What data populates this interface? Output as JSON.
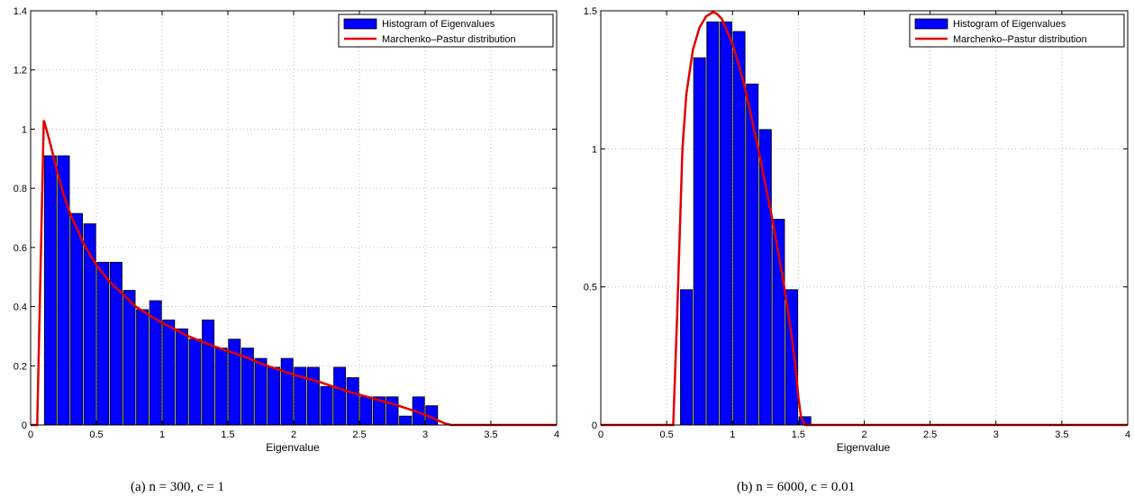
{
  "chart_data": [
    {
      "type": "bar",
      "xlabel": "Eigenvalue",
      "ylabel": "",
      "xlim": [
        0,
        4
      ],
      "ylim": [
        0,
        1.4
      ],
      "xticks": [
        "0",
        "0.5",
        "1",
        "1.5",
        "2",
        "2.5",
        "3",
        "3.5",
        "4"
      ],
      "yticks": [
        "0",
        "0.2",
        "0.4",
        "0.6",
        "0.8",
        "1",
        "1.2",
        "1.4"
      ],
      "grid": true,
      "legend_position": "top-right",
      "bar_width": 0.09,
      "series": [
        {
          "name": "Histogram of Eigenvalues",
          "type": "bar",
          "x": [
            0.15,
            0.25,
            0.35,
            0.45,
            0.55,
            0.65,
            0.75,
            0.85,
            0.95,
            1.05,
            1.15,
            1.25,
            1.35,
            1.45,
            1.55,
            1.65,
            1.75,
            1.85,
            1.95,
            2.05,
            2.15,
            2.25,
            2.35,
            2.45,
            2.55,
            2.65,
            2.75,
            2.85,
            2.95,
            3.05
          ],
          "values": [
            0.91,
            0.91,
            0.715,
            0.68,
            0.55,
            0.55,
            0.455,
            0.39,
            0.42,
            0.355,
            0.325,
            0.29,
            0.355,
            0.26,
            0.29,
            0.26,
            0.225,
            0.195,
            0.225,
            0.195,
            0.195,
            0.13,
            0.195,
            0.16,
            0.095,
            0.095,
            0.095,
            0.03,
            0.095,
            0.065
          ]
        },
        {
          "name": "Marchenko–Pastur distribution",
          "type": "line",
          "color": "#e00000",
          "x": [
            0,
            0.05,
            0.1,
            0.12,
            0.15,
            0.2,
            0.25,
            0.3,
            0.4,
            0.5,
            0.6,
            0.8,
            1.0,
            1.2,
            1.4,
            1.6,
            1.8,
            2.0,
            2.2,
            2.4,
            2.6,
            2.8,
            3.0,
            3.1,
            3.15,
            3.2,
            4.0
          ],
          "values": [
            0,
            0,
            1.03,
            1.0,
            0.95,
            0.86,
            0.78,
            0.715,
            0.615,
            0.54,
            0.485,
            0.4,
            0.345,
            0.3,
            0.265,
            0.235,
            0.2,
            0.17,
            0.145,
            0.115,
            0.09,
            0.065,
            0.035,
            0.015,
            0.005,
            0,
            0
          ]
        }
      ]
    },
    {
      "type": "bar",
      "xlabel": "Eigenvalue",
      "ylabel": "",
      "xlim": [
        0,
        4
      ],
      "ylim": [
        0,
        1.5
      ],
      "xticks": [
        "0",
        "0.5",
        "1",
        "1.5",
        "2",
        "2.5",
        "3",
        "3.5",
        "4"
      ],
      "yticks": [
        "0",
        "0.5",
        "1",
        "1.5"
      ],
      "grid": true,
      "legend_position": "top-right",
      "bar_width": 0.09,
      "series": [
        {
          "name": "Histogram of Eigenvalues",
          "type": "bar",
          "x": [
            0.65,
            0.75,
            0.85,
            0.95,
            1.05,
            1.15,
            1.25,
            1.35,
            1.45,
            1.55
          ],
          "values": [
            0.49,
            1.33,
            1.46,
            1.46,
            1.425,
            1.235,
            1.07,
            0.745,
            0.49,
            0.03
          ]
        },
        {
          "name": "Marchenko–Pastur distribution",
          "type": "line",
          "color": "#e00000",
          "x": [
            0,
            0.55,
            0.58,
            0.6,
            0.62,
            0.65,
            0.7,
            0.75,
            0.8,
            0.85,
            0.88,
            0.92,
            1.0,
            1.05,
            1.1,
            1.15,
            1.2,
            1.25,
            1.3,
            1.35,
            1.4,
            1.45,
            1.48,
            1.5,
            1.52,
            1.55,
            4.0
          ],
          "values": [
            0,
            0,
            0.4,
            0.7,
            1.0,
            1.2,
            1.36,
            1.44,
            1.48,
            1.495,
            1.49,
            1.47,
            1.38,
            1.3,
            1.21,
            1.1,
            0.99,
            0.87,
            0.75,
            0.62,
            0.48,
            0.32,
            0.2,
            0.1,
            0.03,
            0,
            0
          ]
        }
      ]
    }
  ],
  "captions": [
    "(a)  n = 300, c = 1",
    "(b)  n = 6000, c = 0.01"
  ]
}
